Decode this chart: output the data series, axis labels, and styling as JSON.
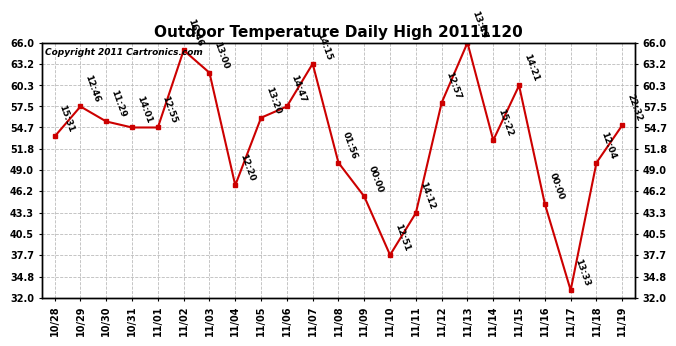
{
  "title": "Outdoor Temperature Daily High 20111120",
  "copyright": "Copyright 2011 Cartronics.com",
  "x_labels": [
    "10/28",
    "10/29",
    "10/30",
    "10/31",
    "11/01",
    "11/02",
    "11/03",
    "11/04",
    "11/05",
    "11/06",
    "11/07",
    "11/08",
    "11/09",
    "11/10",
    "11/11",
    "11/12",
    "11/13",
    "11/14",
    "11/15",
    "11/16",
    "11/17",
    "11/18",
    "11/19"
  ],
  "y_values": [
    53.5,
    57.5,
    55.5,
    54.7,
    54.7,
    65.0,
    62.0,
    47.0,
    56.0,
    57.5,
    63.2,
    50.0,
    45.5,
    37.7,
    43.3,
    58.0,
    66.0,
    53.0,
    60.3,
    44.5,
    33.0,
    50.0,
    55.0
  ],
  "point_labels": [
    "15:31",
    "12:46",
    "11:29",
    "14:01",
    "12:55",
    "16:46",
    "13:00",
    "12:20",
    "13:20",
    "14:47",
    "14:15",
    "01:56",
    "00:00",
    "12:51",
    "14:12",
    "12:57",
    "13:49",
    "15:22",
    "14:21",
    "00:00",
    "13:33",
    "12:04",
    "22:32"
  ],
  "ylim": [
    32.0,
    66.0
  ],
  "yticks": [
    32.0,
    34.8,
    37.7,
    40.5,
    43.3,
    46.2,
    49.0,
    51.8,
    54.7,
    57.5,
    60.3,
    63.2,
    66.0
  ],
  "line_color": "#cc0000",
  "marker_color": "#cc0000",
  "bg_color": "#ffffff",
  "grid_color": "#bbbbbb",
  "title_fontsize": 11,
  "label_fontsize": 6.5,
  "tick_fontsize": 7,
  "copyright_fontsize": 6.5
}
